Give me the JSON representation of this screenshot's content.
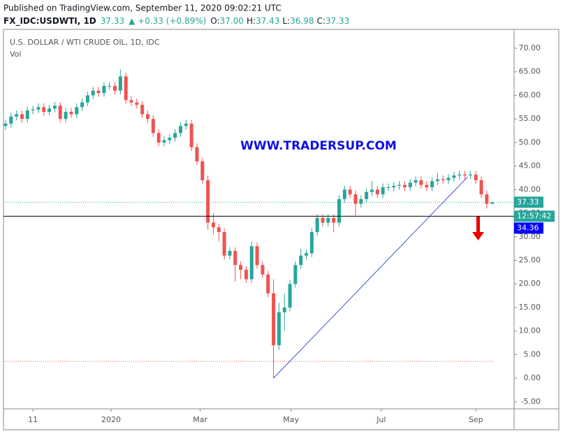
{
  "header": {
    "published": "Published on TradingView.com, September 11, 2020 09:02:21 UTC",
    "symbol": "FX_IDC:USDWTI, 1D",
    "last": "37.33",
    "change": "▲ +0.33 (+0.89%)",
    "ohlc": [
      {
        "label": "O:",
        "value": "37.00"
      },
      {
        "label": "H:",
        "value": "37.43"
      },
      {
        "label": "L:",
        "value": "36.98"
      },
      {
        "label": "C:",
        "value": "37.33"
      }
    ]
  },
  "chart_data": {
    "type": "candlestick",
    "title": "U.S. DOLLAR / WTI CRUDE OIL, 1D, IDC",
    "subtitle": "Vol",
    "annotation": "WWW.TRADERSUP.COM",
    "up_color": "#26a69a",
    "down_color": "#ef5350",
    "categories": [
      null,
      null,
      null,
      null,
      null,
      null,
      null,
      null,
      null,
      null,
      null,
      null,
      null,
      null,
      null,
      null,
      null,
      null,
      null,
      null,
      null,
      null,
      null,
      null,
      null,
      null,
      null,
      null,
      null,
      null,
      null,
      null,
      null,
      null,
      null,
      null,
      null,
      null,
      null,
      null,
      null,
      null,
      null,
      null,
      null,
      null,
      null,
      null,
      null,
      null,
      null,
      null,
      null,
      null,
      null,
      null,
      null,
      null,
      null,
      null,
      null,
      null,
      null,
      null,
      null,
      null,
      null,
      null,
      null,
      null,
      null,
      null,
      null,
      null,
      null,
      null,
      null,
      null,
      null,
      null,
      null,
      null,
      null,
      null,
      null,
      null,
      null,
      null,
      null,
      null
    ],
    "open": [
      53.5,
      54,
      55.5,
      56,
      55,
      56.8,
      57,
      57.5,
      56.5,
      57.2,
      57.8,
      55,
      56.5,
      56,
      57.5,
      58.5,
      60,
      61,
      60.5,
      62,
      62,
      61,
      64,
      59,
      58.5,
      58,
      56,
      55,
      52,
      50,
      50.5,
      51,
      52,
      53.5,
      54,
      49,
      46,
      42,
      33,
      32,
      31,
      26,
      27,
      24,
      23,
      21,
      28,
      24,
      22,
      18,
      7,
      14,
      15,
      20,
      24,
      26,
      26.5,
      31,
      34,
      33,
      34,
      33,
      38,
      40,
      39,
      37,
      38,
      39.5,
      40,
      39,
      40.5,
      40.5,
      40.8,
      41,
      40.5,
      41.5,
      42,
      41,
      40.5,
      41.8,
      42.2,
      42,
      42.5,
      43,
      43.2,
      43,
      43.2,
      42,
      39,
      37
    ],
    "high": [
      54.8,
      56.3,
      56.8,
      56.8,
      57.6,
      57.8,
      58.3,
      58.3,
      58,
      58.6,
      58.6,
      57.3,
      57.3,
      58.3,
      59.3,
      60.8,
      61.8,
      61.8,
      62.8,
      62.8,
      62.8,
      65.5,
      64.8,
      59.8,
      59.3,
      58.8,
      56.8,
      55.8,
      52.8,
      51.3,
      51.8,
      52.8,
      54.3,
      54.8,
      54.8,
      49.8,
      46.8,
      43,
      35,
      32.8,
      31.8,
      27.8,
      27.8,
      24.8,
      23.8,
      29,
      28.8,
      24.8,
      22.8,
      21,
      16,
      18,
      20.8,
      24.8,
      27.5,
      27.3,
      31.8,
      34.8,
      34.8,
      34.8,
      34.8,
      38.8,
      40.8,
      40.8,
      39.8,
      38.8,
      40.3,
      41.8,
      40.8,
      41.3,
      41.3,
      41.6,
      41.8,
      41.8,
      42.3,
      42.8,
      42.8,
      41.8,
      42.6,
      43.5,
      43,
      43.3,
      43.8,
      44,
      44,
      44,
      44,
      42.8,
      39.8,
      37.43
    ],
    "low": [
      52.7,
      53.2,
      54.7,
      54.2,
      54.2,
      56,
      56.2,
      55.7,
      55.7,
      56.4,
      54.2,
      54.2,
      55.2,
      55.2,
      56.7,
      57.7,
      59.2,
      59.7,
      59.7,
      61.2,
      60.2,
      60.2,
      58.2,
      57.7,
      57.2,
      55.2,
      54.2,
      51.2,
      49.2,
      49.2,
      49.7,
      50.2,
      51.2,
      52.7,
      48.2,
      45.2,
      41.2,
      31.5,
      30.5,
      29,
      25.2,
      25.2,
      20.5,
      21,
      20.2,
      20.2,
      23.2,
      21.2,
      17.2,
      0,
      6,
      10,
      14.2,
      19.2,
      23.2,
      25.2,
      25.7,
      30.2,
      32.2,
      32.2,
      31,
      32.2,
      37.2,
      38.2,
      34.5,
      36.2,
      37.2,
      38.7,
      38.2,
      38.2,
      39.7,
      39.7,
      40,
      39.7,
      39.7,
      40.7,
      40.2,
      39.7,
      39.7,
      41,
      41.2,
      41.2,
      41.7,
      42.2,
      42.2,
      42.2,
      41.2,
      38.2,
      36,
      36.98
    ],
    "close": [
      54,
      55.5,
      56,
      55,
      56.8,
      57,
      57.5,
      56.5,
      57.2,
      57.8,
      55,
      56.5,
      56,
      57.5,
      58.5,
      60,
      61,
      60.5,
      62,
      62,
      61,
      64,
      59,
      58.5,
      58,
      56,
      55,
      52,
      50,
      50.5,
      51,
      52,
      53.5,
      54,
      49,
      46,
      42,
      33,
      32,
      31,
      26,
      27,
      24,
      23,
      21,
      28,
      24,
      22,
      18,
      7,
      14,
      15,
      20,
      24,
      26,
      26.5,
      31,
      34,
      33,
      34,
      33,
      38,
      40,
      39,
      37,
      38,
      39.5,
      40,
      39,
      40.5,
      40.5,
      40.8,
      41,
      40.5,
      41.5,
      42,
      41,
      40.5,
      41.8,
      42.2,
      42,
      42.5,
      43,
      43.2,
      43,
      43.2,
      42,
      39,
      37,
      37.33
    ],
    "xlim": [
      -0.38,
      93
    ],
    "xticks": [
      {
        "value": 5,
        "label": "11"
      },
      {
        "value": 19.3,
        "label": "2020"
      },
      {
        "value": 35.6,
        "label": "Mar"
      },
      {
        "value": 52.2,
        "label": "May"
      },
      {
        "value": 68.7,
        "label": "Jul"
      },
      {
        "value": 86,
        "label": "Sep"
      }
    ],
    "ylim": [
      -6.5,
      74
    ],
    "yticks": [
      {
        "value": 70,
        "label": "70.00"
      },
      {
        "value": 65,
        "label": "65.00"
      },
      {
        "value": 60,
        "label": "60.00"
      },
      {
        "value": 55,
        "label": "55.00"
      },
      {
        "value": 50,
        "label": "50.00"
      },
      {
        "value": 45,
        "label": "45.00"
      },
      {
        "value": 40,
        "label": "40.00"
      },
      {
        "value": 35,
        "label": "35.00"
      },
      {
        "value": 30,
        "label": "30.00"
      },
      {
        "value": 25,
        "label": "25.00"
      },
      {
        "value": 20,
        "label": "20.00"
      },
      {
        "value": 15,
        "label": "15.00"
      },
      {
        "value": 10,
        "label": "10.00"
      },
      {
        "value": 5,
        "label": "5.00"
      },
      {
        "value": 0,
        "label": "0.00"
      },
      {
        "value": -5,
        "label": "-5.00"
      }
    ],
    "last_price": 37.33,
    "countdown": "12:57:42",
    "hline": 34.36,
    "hline_color": "#0000ff",
    "low_level": 3.56,
    "trendline": [
      {
        "index": 49,
        "value": 0
      },
      {
        "index": 84.5,
        "value": 42.7
      }
    ],
    "trendline_color": "#3f51d9"
  }
}
